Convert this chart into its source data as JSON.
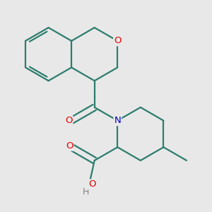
{
  "bg_color": "#e8e8e8",
  "bond_color": "#2d7d6e",
  "bond_width": 1.6,
  "atom_colors": {
    "O": "#e00000",
    "N": "#0000cc",
    "H": "#808080"
  },
  "font_size": 9.5
}
